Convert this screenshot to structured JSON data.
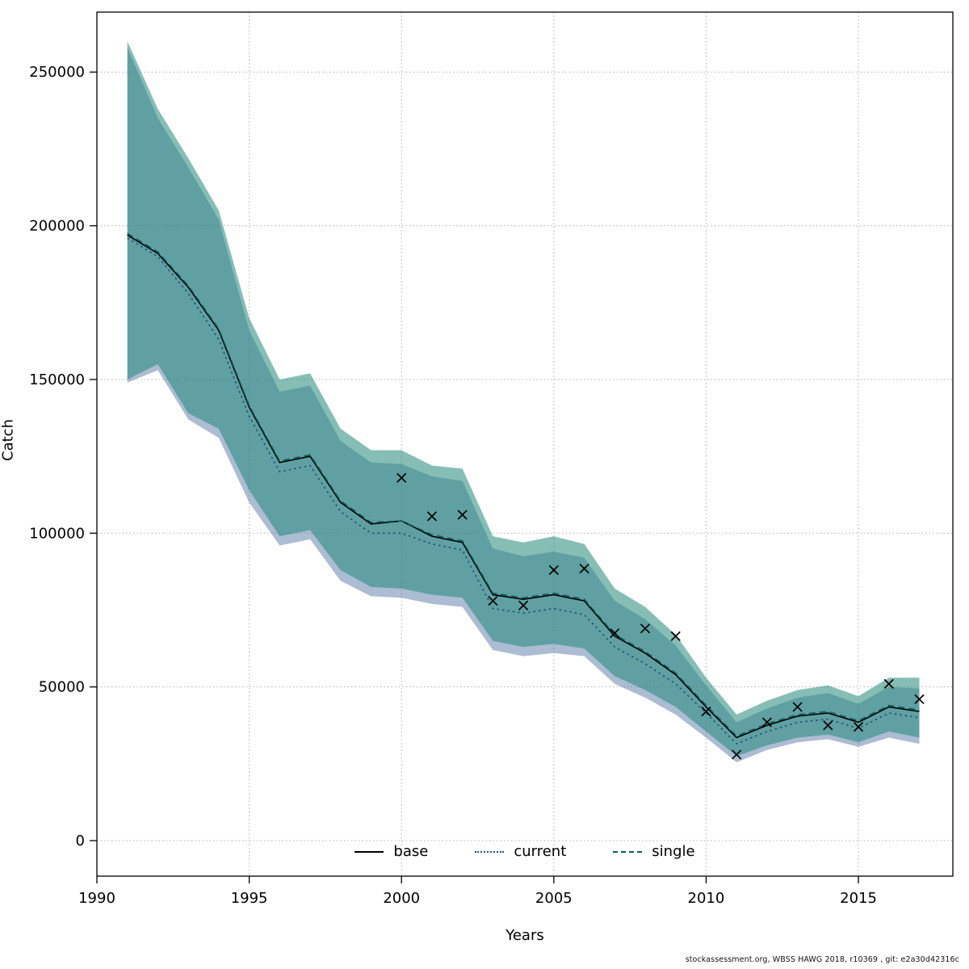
{
  "footer": {
    "text": "stockassessment.org, WBSS HAWG 2018, r10369 , git: e2a30d42316c"
  },
  "chart_data": {
    "type": "line",
    "title": "",
    "xlabel": "Years",
    "ylabel": "Catch",
    "xlim": [
      1990,
      2018.1
    ],
    "ylim": [
      -11550,
      269500
    ],
    "x_ticks": [
      1990,
      1995,
      2000,
      2005,
      2010,
      2015
    ],
    "y_ticks": [
      0,
      50000,
      100000,
      150000,
      200000,
      250000
    ],
    "grid": true,
    "grid_color": "#b0b0b0",
    "legend_position": "bottom-center",
    "years": [
      1991,
      1992,
      1993,
      1994,
      1995,
      1996,
      1997,
      1998,
      1999,
      2000,
      2001,
      2002,
      2003,
      2004,
      2005,
      2006,
      2007,
      2008,
      2009,
      2010,
      2011,
      2012,
      2013,
      2014,
      2015,
      2016,
      2017
    ],
    "series": [
      {
        "name": "base",
        "line_style": "solid",
        "color": "#000000",
        "values": [
          197000,
          191000,
          180000,
          166000,
          141000,
          123000,
          125000,
          110000,
          103000,
          104000,
          99000,
          97000,
          80000,
          78500,
          80000,
          78000,
          66500,
          61000,
          54000,
          43500,
          33500,
          37500,
          40500,
          41500,
          38500,
          43500,
          42000
        ]
      },
      {
        "name": "current",
        "line_style": "dotted",
        "color": "#1e4f7a",
        "band_color": "#3a6096",
        "band_opacity": 0.42,
        "values": [
          196000,
          190000,
          178000,
          163000,
          138000,
          120000,
          122000,
          107000,
          100000,
          100000,
          96500,
          94500,
          75500,
          74000,
          75500,
          73500,
          63000,
          57500,
          51000,
          41500,
          31500,
          35500,
          38500,
          39500,
          36500,
          41500,
          40000
        ],
        "band_low": [
          149000,
          153000,
          137000,
          131000,
          110000,
          96000,
          98000,
          84500,
          79500,
          79000,
          77000,
          76000,
          62000,
          60000,
          61000,
          60000,
          51000,
          46500,
          41000,
          33500,
          25500,
          29500,
          32000,
          33000,
          30500,
          33500,
          31500
        ],
        "band_high": [
          258000,
          235000,
          219000,
          202000,
          166000,
          146000,
          148000,
          130000,
          123000,
          122500,
          118500,
          117000,
          95000,
          92500,
          94000,
          92000,
          78000,
          72000,
          63500,
          50500,
          38500,
          43000,
          46500,
          48000,
          44500,
          50000,
          49500
        ]
      },
      {
        "name": "single",
        "line_style": "dashed",
        "color": "#0e5c5c",
        "band_color": "#22897a",
        "band_opacity": 0.55,
        "values": [
          197500,
          191500,
          180500,
          166500,
          141500,
          123500,
          125500,
          110500,
          103500,
          104000,
          99500,
          97500,
          80500,
          79000,
          80500,
          78500,
          67000,
          61500,
          54500,
          44000,
          34000,
          38000,
          41000,
          42000,
          39000,
          44000,
          42500
        ],
        "band_low": [
          150000,
          155000,
          139000,
          134000,
          114000,
          99000,
          101000,
          88000,
          82500,
          82000,
          80000,
          79000,
          65000,
          63000,
          64000,
          62500,
          53500,
          49000,
          43500,
          35500,
          27500,
          31000,
          33500,
          34500,
          32000,
          35500,
          33500
        ],
        "band_high": [
          260000,
          238000,
          222000,
          205000,
          170000,
          150000,
          152000,
          134000,
          127000,
          127000,
          122000,
          121000,
          99000,
          97000,
          99000,
          96500,
          82000,
          76000,
          67000,
          53000,
          41000,
          45500,
          49000,
          50500,
          47000,
          53000,
          53000
        ]
      }
    ],
    "observations": {
      "marker": "x",
      "color": "#000000",
      "x": [
        2000,
        2001,
        2002,
        2003,
        2004,
        2005,
        2006,
        2007,
        2008,
        2009,
        2010,
        2011,
        2012,
        2013,
        2014,
        2015,
        2016,
        2017
      ],
      "y": [
        118000,
        105500,
        106000,
        78000,
        76500,
        88000,
        88500,
        67500,
        69000,
        66500,
        42000,
        28000,
        38500,
        43500,
        37500,
        37000,
        51000,
        46000
      ]
    },
    "legend": [
      {
        "label": "base",
        "style": "solid",
        "color": "#000000"
      },
      {
        "label": "current",
        "style": "dotted",
        "color": "#1e4f7a"
      },
      {
        "label": "single",
        "style": "dashed",
        "color": "#0e5c5c"
      }
    ]
  }
}
